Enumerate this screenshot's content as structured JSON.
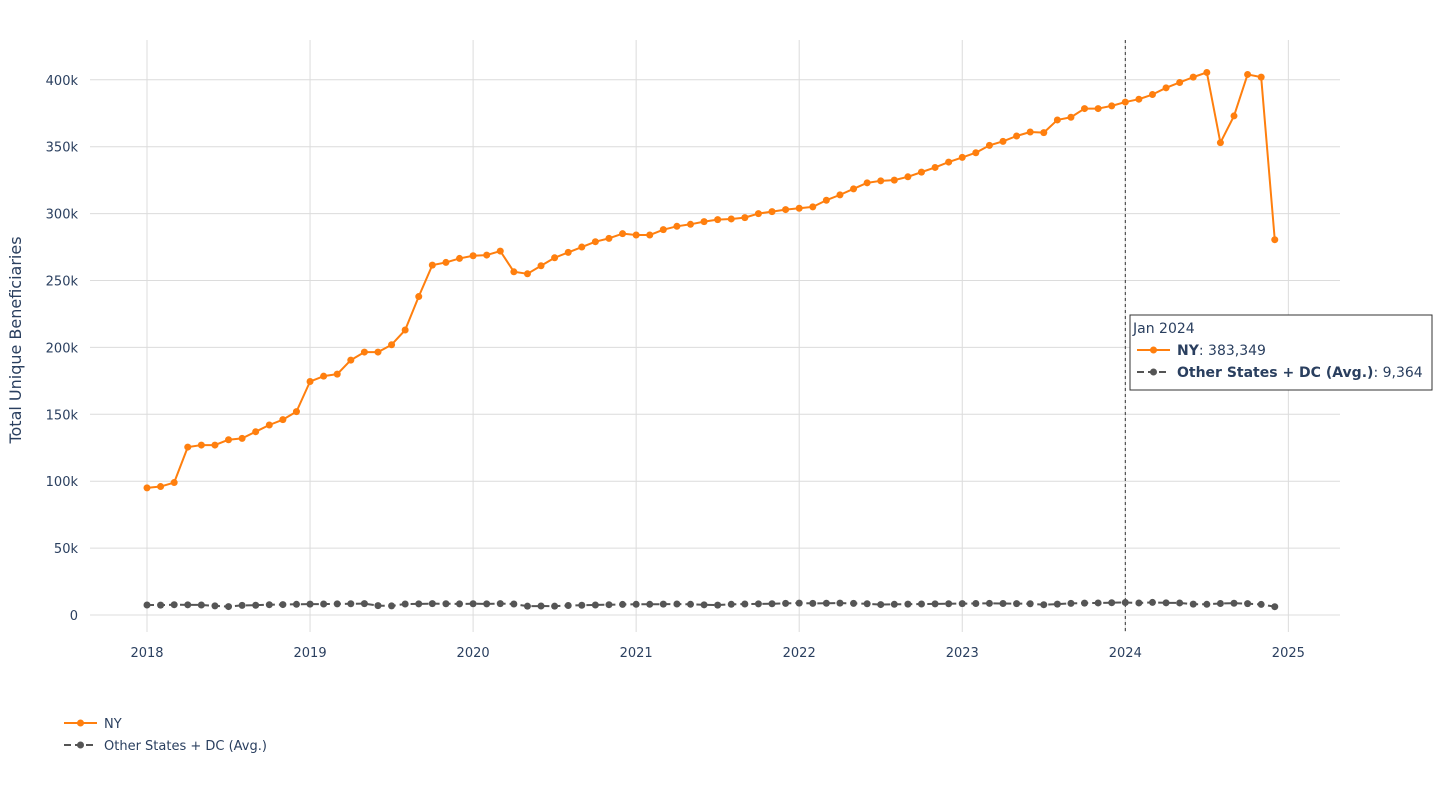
{
  "chart_data": {
    "type": "line",
    "ylabel": "Total Unique Beneficiaries",
    "xlabel": "",
    "x_ticks": [
      "2018",
      "2019",
      "2020",
      "2021",
      "2022",
      "2023",
      "2024",
      "2025"
    ],
    "y_ticks": [
      "0",
      "50k",
      "100k",
      "150k",
      "200k",
      "250k",
      "300k",
      "350k",
      "400k"
    ],
    "ylim": [
      -15000,
      430000
    ],
    "xlim": [
      "2017-09",
      "2025-05"
    ],
    "grid": true,
    "legend_position": "bottom-left",
    "x": [
      "2018-01",
      "2018-02",
      "2018-03",
      "2018-04",
      "2018-05",
      "2018-06",
      "2018-07",
      "2018-08",
      "2018-09",
      "2018-10",
      "2018-11",
      "2018-12",
      "2019-01",
      "2019-02",
      "2019-03",
      "2019-04",
      "2019-05",
      "2019-06",
      "2019-07",
      "2019-08",
      "2019-09",
      "2019-10",
      "2019-11",
      "2019-12",
      "2020-01",
      "2020-02",
      "2020-03",
      "2020-04",
      "2020-05",
      "2020-06",
      "2020-07",
      "2020-08",
      "2020-09",
      "2020-10",
      "2020-11",
      "2020-12",
      "2021-01",
      "2021-02",
      "2021-03",
      "2021-04",
      "2021-05",
      "2021-06",
      "2021-07",
      "2021-08",
      "2021-09",
      "2021-10",
      "2021-11",
      "2021-12",
      "2022-01",
      "2022-02",
      "2022-03",
      "2022-04",
      "2022-05",
      "2022-06",
      "2022-07",
      "2022-08",
      "2022-09",
      "2022-10",
      "2022-11",
      "2022-12",
      "2023-01",
      "2023-02",
      "2023-03",
      "2023-04",
      "2023-05",
      "2023-06",
      "2023-07",
      "2023-08",
      "2023-09",
      "2023-10",
      "2023-11",
      "2023-12",
      "2024-01",
      "2024-02",
      "2024-03",
      "2024-04",
      "2024-05",
      "2024-06",
      "2024-07",
      "2024-08",
      "2024-09",
      "2024-10",
      "2024-11",
      "2024-12"
    ],
    "series": [
      {
        "name": "NY",
        "color": "#ff7f0e",
        "dash": "solid",
        "values": [
          95000,
          96000,
          99000,
          125500,
          127000,
          127000,
          131000,
          132000,
          137000,
          142000,
          146000,
          152000,
          174500,
          178500,
          180000,
          190500,
          196500,
          196500,
          202000,
          213000,
          238000,
          261500,
          263500,
          266500,
          268500,
          269000,
          272000,
          256500,
          255000,
          261000,
          267000,
          271000,
          275000,
          279000,
          281500,
          285000,
          284000,
          284000,
          288000,
          290500,
          292000,
          294000,
          295500,
          296000,
          297000,
          300000,
          301500,
          303000,
          304000,
          305000,
          310000,
          314000,
          318500,
          323000,
          324500,
          325000,
          327500,
          331000,
          334500,
          338500,
          342000,
          345500,
          351000,
          354000,
          358000,
          361000,
          360500,
          370000,
          372000,
          378500,
          378500,
          380500,
          383349,
          385500,
          389000,
          394000,
          398000,
          402000,
          405500,
          353000,
          373000,
          404000,
          402000,
          280500
        ]
      },
      {
        "name": "Other States + DC (Avg.)",
        "color": "#555555",
        "dash": "dash",
        "values": [
          7500,
          7400,
          7700,
          7600,
          7500,
          6800,
          6300,
          7200,
          7300,
          7700,
          7800,
          8000,
          8100,
          8200,
          8300,
          8400,
          8500,
          7000,
          6800,
          8200,
          8300,
          8500,
          8400,
          8300,
          8400,
          8300,
          8500,
          8200,
          6600,
          6700,
          6600,
          7100,
          7300,
          7500,
          7700,
          7900,
          8000,
          8000,
          8100,
          8200,
          8000,
          7600,
          7400,
          8000,
          8200,
          8300,
          8400,
          8700,
          8900,
          8700,
          8800,
          8900,
          8700,
          8400,
          7800,
          8000,
          8100,
          8200,
          8300,
          8400,
          8500,
          8600,
          8700,
          8600,
          8500,
          8400,
          7700,
          8100,
          8700,
          8900,
          9000,
          9200,
          9364,
          9000,
          9400,
          9100,
          9000,
          8100,
          8000,
          8600,
          8800,
          8500,
          7900,
          6200
        ]
      }
    ],
    "hover": {
      "x_label": "Jan 2024",
      "x_index": 72,
      "items": [
        {
          "name": "NY",
          "value": "383,349"
        },
        {
          "name": "Other States + DC (Avg.)",
          "value": "9,364"
        }
      ]
    }
  }
}
